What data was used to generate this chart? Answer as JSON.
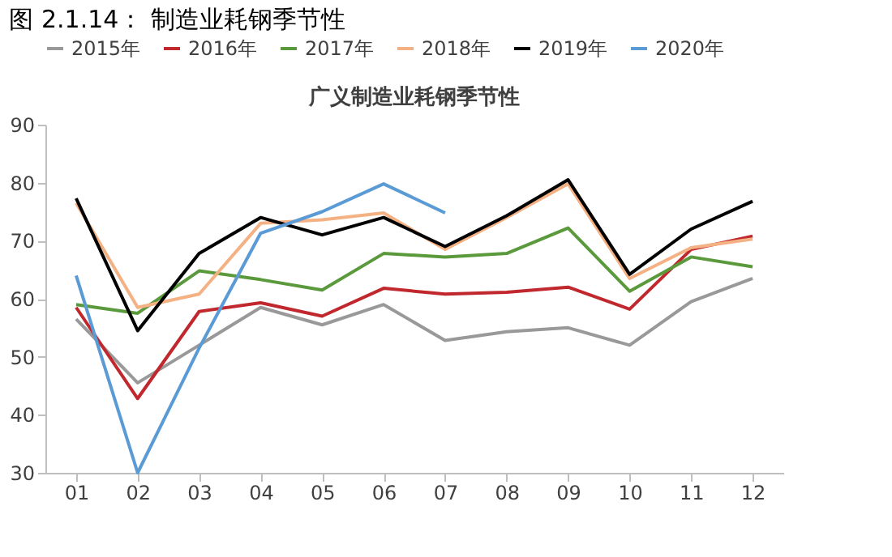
{
  "chart_data": {
    "type": "line",
    "title": "图 2.1.14： 制造业耗钢季节性",
    "subtitle": "广义制造业耗钢季节性",
    "categories": [
      "01",
      "02",
      "03",
      "04",
      "05",
      "06",
      "07",
      "08",
      "09",
      "10",
      "11",
      "12"
    ],
    "series": [
      {
        "name": "2015年",
        "color": "#999999",
        "values": [
          56.5,
          45.5,
          52,
          58.5,
          55.5,
          59,
          52.8,
          54.3,
          55,
          52,
          59.5,
          63.5
        ]
      },
      {
        "name": "2016年",
        "color": "#c0282d",
        "values": [
          58.5,
          42.8,
          57.8,
          59.3,
          57,
          61.8,
          60.8,
          61.1,
          62,
          58.2,
          68.5,
          70.8
        ]
      },
      {
        "name": "2017年",
        "color": "#5a9a3c",
        "values": [
          59,
          57.5,
          64.8,
          63.3,
          61.5,
          67.8,
          67.2,
          67.8,
          72.2,
          61.3,
          67.2,
          65.5
        ]
      },
      {
        "name": "2018年",
        "color": "#f4b183",
        "values": [
          76.5,
          58.5,
          60.8,
          73,
          73.6,
          74.8,
          68.5,
          74,
          79.8,
          63.5,
          68.8,
          70.3
        ]
      },
      {
        "name": "2019年",
        "color": "#000000",
        "values": [
          77.3,
          54.5,
          67.8,
          74,
          71,
          74,
          69,
          74.3,
          80.5,
          64.2,
          72,
          76.8
        ]
      },
      {
        "name": "2020年",
        "color": "#5b9bd5",
        "values": [
          64,
          30,
          51.5,
          71.3,
          75,
          79.8,
          74.8,
          null,
          null,
          null,
          null,
          null
        ]
      }
    ],
    "ylim": [
      30,
      90
    ],
    "yticks": [
      30,
      40,
      50,
      60,
      70,
      80,
      90
    ],
    "grid": false,
    "legend": "top",
    "marker": "none",
    "line_style": "solid"
  }
}
